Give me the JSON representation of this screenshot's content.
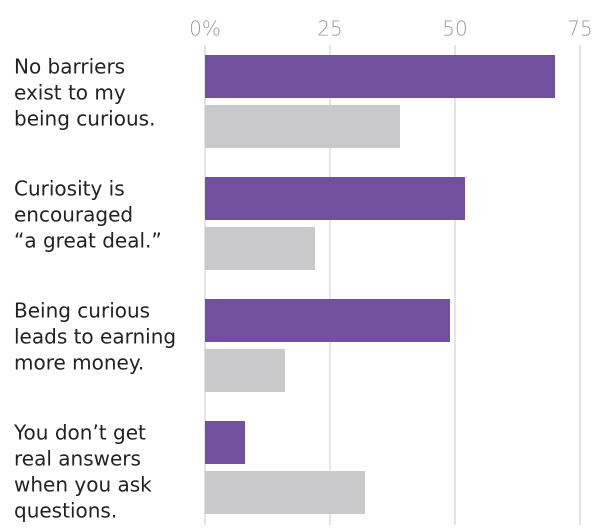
{
  "chart_data": {
    "type": "hbar",
    "categories": [
      [
        "No barriers",
        "exist to my",
        "being curious."
      ],
      [
        "Curiosity is",
        "encouraged",
        "“a great deal.”"
      ],
      [
        "Being curious",
        "leads to earning",
        "more money."
      ],
      [
        "You don’t get",
        "real answers",
        "when you ask",
        "questions."
      ]
    ],
    "series": [
      {
        "color": "#72509e",
        "values": [
          70,
          52,
          49,
          8
        ]
      },
      {
        "color": "#c9c9cb",
        "values": [
          39,
          22,
          16,
          32
        ]
      }
    ],
    "xlim": [
      0,
      75
    ],
    "xticks": [
      {
        "value": 0,
        "label": "0%"
      },
      25,
      50,
      75
    ],
    "grid": true
  }
}
